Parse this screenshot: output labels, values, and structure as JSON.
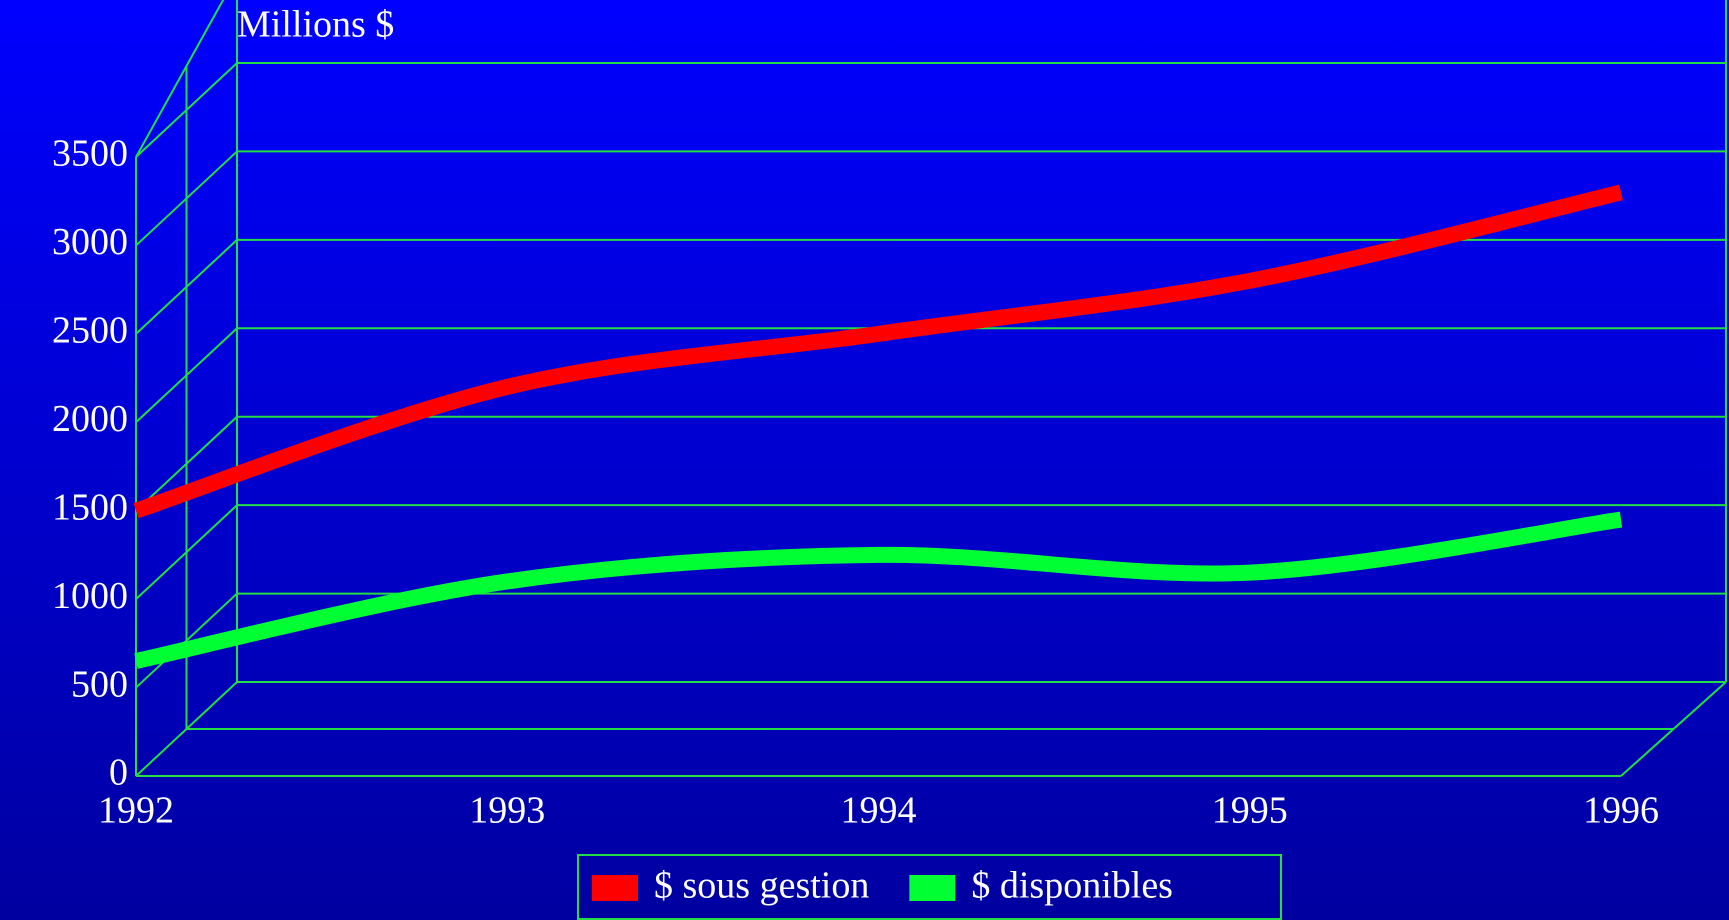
{
  "chart_data": {
    "type": "line",
    "title": "Millions $",
    "categories": [
      "1992",
      "1993",
      "1994",
      "1995",
      "1996"
    ],
    "series": [
      {
        "name": "$ sous gestion",
        "color": "#ff0000",
        "values": [
          1500,
          2200,
          2500,
          2800,
          3300
        ]
      },
      {
        "name": "$ disponibles",
        "color": "#00ff33",
        "values": [
          650,
          1100,
          1250,
          1150,
          1450
        ]
      }
    ],
    "ylim": [
      0,
      3500
    ],
    "yticks": [
      0,
      500,
      1000,
      1500,
      2000,
      2500,
      3000,
      3500
    ],
    "grid": true,
    "legend": "bottom",
    "grid_color": "#22dd44"
  }
}
